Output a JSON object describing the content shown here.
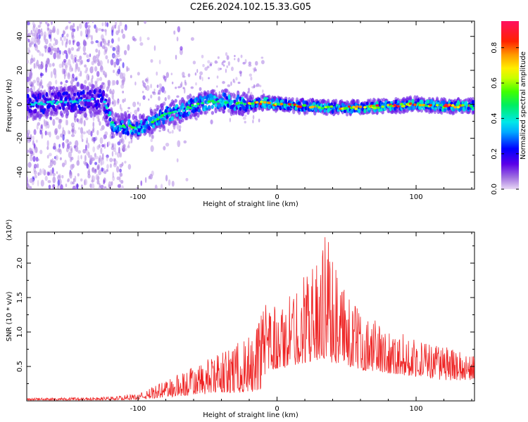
{
  "title": "C2E6.2024.102.15.33.G05",
  "chart_data": [
    {
      "type": "heatmap",
      "xlabel": "Height of straight line (km)",
      "ylabel": "Frequency (Hz)",
      "xlim": [
        -180,
        142
      ],
      "ylim": [
        -50,
        49
      ],
      "xticks": [
        -100,
        0,
        100
      ],
      "yticks": [
        -40,
        -20,
        0,
        20,
        40
      ],
      "colorbar": {
        "label": "Normalized spectral amplitude",
        "range": [
          0,
          0.95
        ],
        "ticks": [
          0.0,
          0.2,
          0.4,
          0.6,
          0.8
        ]
      },
      "ridge": {
        "x": [
          -180,
          -160,
          -140,
          -125,
          -118,
          -110,
          -100,
          -90,
          -80,
          -70,
          -60,
          -50,
          -40,
          -30,
          -20,
          -10,
          0,
          20,
          40,
          60,
          80,
          100,
          120,
          142
        ],
        "y": [
          0,
          1,
          2,
          3,
          -12,
          -13,
          -14,
          -10,
          -6,
          -4,
          -1,
          1,
          2,
          1,
          0,
          1,
          0,
          -1,
          -2,
          -2,
          -1,
          0,
          -1,
          -1
        ]
      }
    },
    {
      "type": "line",
      "xlabel": "Height of straight line (km)",
      "ylabel": "SNR (10 * v/v)",
      "yscale_note": "(x10⁴)",
      "xlim": [
        -180,
        142
      ],
      "ylim": [
        0,
        2.45
      ],
      "xticks": [
        -100,
        0,
        100
      ],
      "yticks": [
        0.5,
        1.0,
        1.5,
        2.0
      ],
      "series": [
        {
          "color": "#ee2222",
          "envelope": {
            "x": [
              -180,
              -120,
              -100,
              -80,
              -60,
              -40,
              -20,
              -10,
              -7,
              0,
              10,
              20,
              30,
              35,
              40,
              50,
              60,
              80,
              100,
              120,
              142
            ],
            "low": [
              0.01,
              0.01,
              0.02,
              0.05,
              0.08,
              0.12,
              0.12,
              0.15,
              0.4,
              0.45,
              0.5,
              0.55,
              0.6,
              0.6,
              0.55,
              0.5,
              0.45,
              0.4,
              0.35,
              0.3,
              0.3
            ],
            "high": [
              0.04,
              0.06,
              0.1,
              0.3,
              0.5,
              0.7,
              0.95,
              1.3,
              1.45,
              1.35,
              1.55,
              1.9,
              2.0,
              2.45,
              2.1,
              1.55,
              1.3,
              1.05,
              0.9,
              0.8,
              0.65
            ]
          }
        }
      ]
    }
  ]
}
